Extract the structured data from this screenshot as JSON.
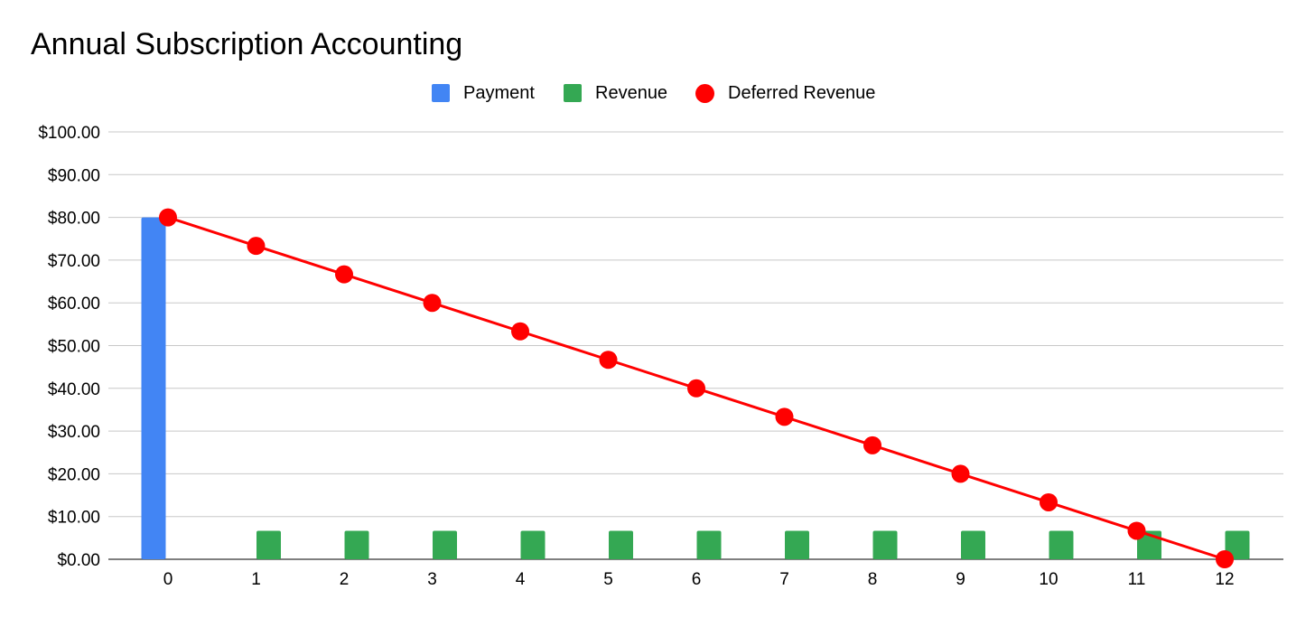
{
  "chart_data": {
    "type": "bar",
    "title": "Annual Subscription Accounting",
    "categories": [
      "0",
      "1",
      "2",
      "3",
      "4",
      "5",
      "6",
      "7",
      "8",
      "9",
      "10",
      "11",
      "12"
    ],
    "series": [
      {
        "name": "Payment",
        "kind": "bar",
        "color": "#4285f4",
        "values": [
          80,
          0,
          0,
          0,
          0,
          0,
          0,
          0,
          0,
          0,
          0,
          0,
          0
        ]
      },
      {
        "name": "Revenue",
        "kind": "bar",
        "color": "#34a853",
        "values": [
          0,
          6.67,
          6.67,
          6.67,
          6.67,
          6.67,
          6.67,
          6.67,
          6.67,
          6.67,
          6.67,
          6.67,
          6.67
        ]
      },
      {
        "name": "Deferred Revenue",
        "kind": "line",
        "color": "#ff0000",
        "values": [
          80,
          73.33,
          66.67,
          60,
          53.33,
          46.67,
          40,
          33.33,
          26.67,
          20,
          13.33,
          6.67,
          0
        ]
      }
    ],
    "ylim": [
      0,
      100
    ],
    "yticks": [
      0,
      10,
      20,
      30,
      40,
      50,
      60,
      70,
      80,
      90,
      100
    ],
    "ytick_labels": [
      "$0.00",
      "$10.00",
      "$20.00",
      "$30.00",
      "$40.00",
      "$50.00",
      "$60.00",
      "$70.00",
      "$80.00",
      "$90.00",
      "$100.00"
    ],
    "xlabel": "",
    "ylabel": "",
    "grid": true,
    "legend_position": "top-center"
  }
}
